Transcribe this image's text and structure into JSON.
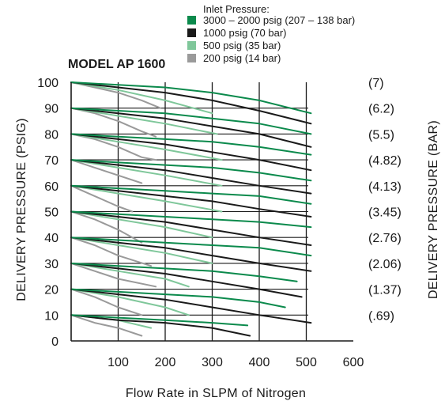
{
  "chart_data": {
    "type": "line",
    "title": "MODEL AP 1600",
    "xlabel": "Flow Rate in SLPM of Nitrogen",
    "ylabel": "DELIVERY PRESSURE (PSIG)",
    "y2label": "DELIVERY PRESSURE (BAR)",
    "xlim": [
      0,
      600
    ],
    "ylim": [
      0,
      100
    ],
    "x_ticks": [
      "100",
      "200",
      "300",
      "400",
      "500",
      "600"
    ],
    "y_ticks": [
      "0",
      "10",
      "20",
      "30",
      "40",
      "50",
      "60",
      "70",
      "80",
      "90",
      "100"
    ],
    "y2_ticks": [
      {
        "y": 100,
        "label": "(7)"
      },
      {
        "y": 90,
        "label": "(6.2)"
      },
      {
        "y": 80,
        "label": "(5.5)"
      },
      {
        "y": 70,
        "label": "(4.82)"
      },
      {
        "y": 60,
        "label": "(4.13)"
      },
      {
        "y": 50,
        "label": "(3.45)"
      },
      {
        "y": 40,
        "label": "(2.76)"
      },
      {
        "y": 30,
        "label": "(2.06)"
      },
      {
        "y": 20,
        "label": "(1.37)"
      },
      {
        "y": 10,
        "label": "(.69)"
      }
    ],
    "grid": true,
    "legend_title": "Inlet Pressure:",
    "legend_position": "top-right",
    "series": [
      {
        "name": "3000 – 2000 psig (207 – 138 bar)",
        "color": "#0b8a4c",
        "curves": [
          [
            [
              0,
              100
            ],
            [
              100,
              99
            ],
            [
              200,
              98
            ],
            [
              300,
              96
            ],
            [
              400,
              93
            ],
            [
              510,
              88
            ]
          ],
          [
            [
              0,
              90
            ],
            [
              100,
              89
            ],
            [
              200,
              88
            ],
            [
              300,
              86
            ],
            [
              400,
              84
            ],
            [
              510,
              80
            ]
          ],
          [
            [
              0,
              80
            ],
            [
              100,
              79
            ],
            [
              200,
              78
            ],
            [
              300,
              77
            ],
            [
              400,
              75
            ],
            [
              510,
              72
            ]
          ],
          [
            [
              0,
              70
            ],
            [
              100,
              69
            ],
            [
              200,
              68
            ],
            [
              300,
              67
            ],
            [
              400,
              65
            ],
            [
              510,
              62
            ]
          ],
          [
            [
              0,
              60
            ],
            [
              100,
              59
            ],
            [
              200,
              58
            ],
            [
              300,
              57
            ],
            [
              400,
              56
            ],
            [
              510,
              53
            ]
          ],
          [
            [
              0,
              50
            ],
            [
              100,
              49
            ],
            [
              200,
              48
            ],
            [
              300,
              47
            ],
            [
              400,
              46
            ],
            [
              510,
              44
            ]
          ],
          [
            [
              0,
              40
            ],
            [
              100,
              39
            ],
            [
              200,
              38
            ],
            [
              300,
              37
            ],
            [
              400,
              36
            ],
            [
              510,
              33
            ]
          ],
          [
            [
              0,
              30
            ],
            [
              100,
              29
            ],
            [
              200,
              28
            ],
            [
              300,
              27
            ],
            [
              400,
              25
            ],
            [
              480,
              23
            ]
          ],
          [
            [
              0,
              20
            ],
            [
              100,
              19
            ],
            [
              200,
              18
            ],
            [
              300,
              17
            ],
            [
              400,
              15
            ],
            [
              455,
              13
            ]
          ],
          [
            [
              0,
              10
            ],
            [
              100,
              9
            ],
            [
              200,
              8
            ],
            [
              300,
              7
            ],
            [
              375,
              6
            ]
          ]
        ]
      },
      {
        "name": "1000 psig (70 bar)",
        "color": "#1a1a1a",
        "curves": [
          [
            [
              0,
              100
            ],
            [
              100,
              98
            ],
            [
              200,
              96
            ],
            [
              300,
              93
            ],
            [
              400,
              89
            ],
            [
              510,
              84
            ]
          ],
          [
            [
              0,
              90
            ],
            [
              100,
              88
            ],
            [
              200,
              86
            ],
            [
              300,
              83
            ],
            [
              400,
              80
            ],
            [
              510,
              75
            ]
          ],
          [
            [
              0,
              80
            ],
            [
              100,
              78
            ],
            [
              200,
              76
            ],
            [
              300,
              73
            ],
            [
              400,
              70
            ],
            [
              510,
              66
            ]
          ],
          [
            [
              0,
              70
            ],
            [
              100,
              68
            ],
            [
              200,
              66
            ],
            [
              300,
              63
            ],
            [
              400,
              60
            ],
            [
              510,
              57
            ]
          ],
          [
            [
              0,
              60
            ],
            [
              100,
              58
            ],
            [
              200,
              56
            ],
            [
              300,
              54
            ],
            [
              400,
              51
            ],
            [
              510,
              48
            ]
          ],
          [
            [
              0,
              50
            ],
            [
              100,
              48
            ],
            [
              200,
              46
            ],
            [
              300,
              43
            ],
            [
              400,
              40
            ],
            [
              510,
              37
            ]
          ],
          [
            [
              0,
              40
            ],
            [
              100,
              38
            ],
            [
              200,
              36
            ],
            [
              300,
              33
            ],
            [
              400,
              30
            ],
            [
              510,
              27
            ]
          ],
          [
            [
              0,
              30
            ],
            [
              100,
              28
            ],
            [
              200,
              26
            ],
            [
              300,
              23
            ],
            [
              400,
              20
            ],
            [
              490,
              17
            ]
          ],
          [
            [
              0,
              20
            ],
            [
              100,
              18
            ],
            [
              200,
              16
            ],
            [
              300,
              13
            ],
            [
              400,
              10
            ],
            [
              510,
              7
            ]
          ],
          [
            [
              0,
              10
            ],
            [
              100,
              8
            ],
            [
              200,
              7
            ],
            [
              300,
              5
            ],
            [
              380,
              2
            ]
          ]
        ]
      },
      {
        "name": "500 psig (35 bar)",
        "color": "#7fc79a",
        "curves": [
          [
            [
              0,
              100
            ],
            [
              100,
              97
            ],
            [
              200,
              93
            ],
            [
              300,
              88
            ]
          ],
          [
            [
              0,
              90
            ],
            [
              100,
              87
            ],
            [
              200,
              84
            ],
            [
              310,
              80
            ]
          ],
          [
            [
              0,
              80
            ],
            [
              100,
              77
            ],
            [
              200,
              74
            ],
            [
              320,
              70
            ]
          ],
          [
            [
              0,
              70
            ],
            [
              100,
              67
            ],
            [
              200,
              64
            ],
            [
              320,
              60
            ]
          ],
          [
            [
              0,
              60
            ],
            [
              100,
              57
            ],
            [
              200,
              54
            ],
            [
              320,
              50
            ]
          ],
          [
            [
              0,
              50
            ],
            [
              100,
              47
            ],
            [
              200,
              44
            ],
            [
              300,
              40
            ]
          ],
          [
            [
              0,
              40
            ],
            [
              100,
              37
            ],
            [
              200,
              34
            ],
            [
              300,
              30
            ]
          ],
          [
            [
              0,
              30
            ],
            [
              100,
              27
            ],
            [
              200,
              24
            ],
            [
              250,
              21
            ]
          ],
          [
            [
              0,
              20
            ],
            [
              100,
              17
            ],
            [
              200,
              13
            ],
            [
              250,
              10
            ]
          ],
          [
            [
              0,
              10
            ],
            [
              100,
              8
            ],
            [
              170,
              5
            ]
          ]
        ]
      },
      {
        "name": "200 psig (14 bar)",
        "color": "#9a9a9a",
        "curves": [
          [
            [
              0,
              100
            ],
            [
              50,
              98
            ],
            [
              100,
              96
            ],
            [
              150,
              93
            ],
            [
              190,
              90
            ]
          ],
          [
            [
              0,
              90
            ],
            [
              50,
              88
            ],
            [
              100,
              85
            ],
            [
              150,
              81
            ],
            [
              180,
              79
            ]
          ],
          [
            [
              0,
              80
            ],
            [
              50,
              78
            ],
            [
              100,
              75
            ],
            [
              150,
              71
            ],
            [
              180,
              70
            ]
          ],
          [
            [
              0,
              70
            ],
            [
              50,
              67
            ],
            [
              100,
              64
            ],
            [
              150,
              61
            ]
          ],
          [
            [
              0,
              60
            ],
            [
              50,
              56
            ],
            [
              100,
              52
            ],
            [
              130,
              50
            ]
          ],
          [
            [
              0,
              50
            ],
            [
              50,
              47
            ],
            [
              100,
              43
            ],
            [
              150,
              38
            ]
          ],
          [
            [
              0,
              40
            ],
            [
              50,
              37
            ],
            [
              100,
              33
            ],
            [
              170,
              29
            ]
          ],
          [
            [
              0,
              30
            ],
            [
              50,
              27
            ],
            [
              100,
              24
            ],
            [
              180,
              21
            ]
          ],
          [
            [
              0,
              20
            ],
            [
              50,
              17
            ],
            [
              100,
              13
            ],
            [
              150,
              10
            ]
          ],
          [
            [
              0,
              10
            ],
            [
              50,
              7
            ],
            [
              100,
              5
            ],
            [
              150,
              2
            ]
          ]
        ]
      }
    ]
  }
}
